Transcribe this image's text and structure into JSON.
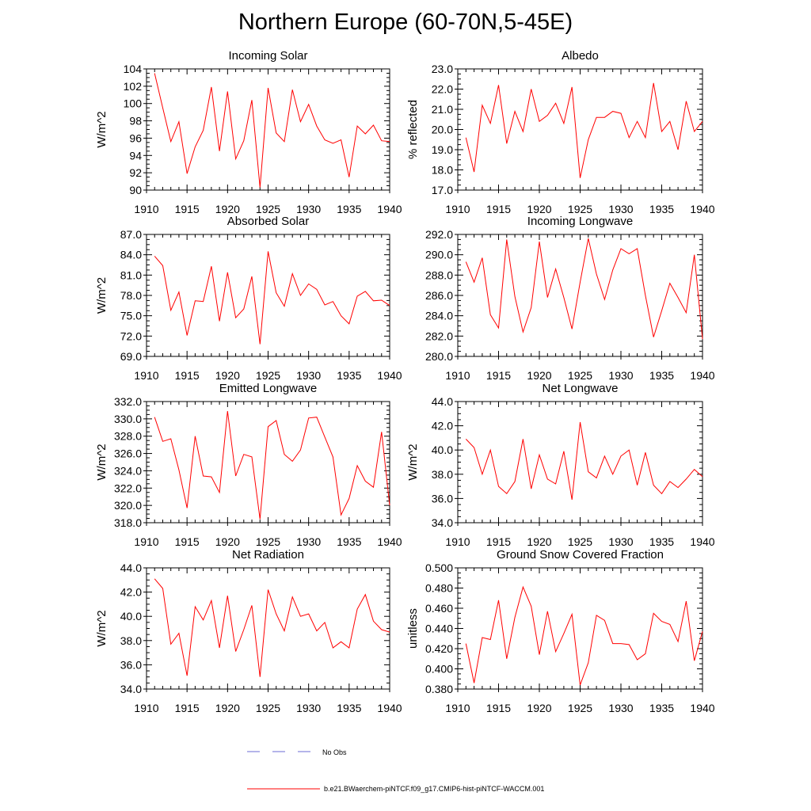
{
  "page": {
    "title": "Northern Europe (60-70N,5-45E)"
  },
  "legend": {
    "entries": [
      {
        "label": "No Obs",
        "color": "#6b6bd6",
        "style": "dashed"
      },
      {
        "label": "b.e21.BWaerchem-piNTCF.f09_g17.CMIP6-hist-piNTCF-WACCM.001",
        "color": "#ff0000",
        "style": "solid"
      }
    ]
  },
  "chart_data": [
    {
      "type": "line",
      "title": "Incoming Solar",
      "xlabel": "",
      "ylabel": "W/m^2",
      "xlim": [
        1910,
        1940
      ],
      "ylim": [
        90,
        104
      ],
      "yticks": [
        "90",
        "92",
        "94",
        "96",
        "98",
        "100",
        "102",
        "104"
      ],
      "xticks": [
        "1910",
        "1915",
        "1920",
        "1925",
        "1930",
        "1935",
        "1940"
      ],
      "grid": false,
      "series": [
        {
          "color": "#ff0000",
          "x": [
            1911,
            1912,
            1913,
            1914,
            1915,
            1916,
            1917,
            1918,
            1919,
            1920,
            1921,
            1922,
            1923,
            1924,
            1925,
            1926,
            1927,
            1928,
            1929,
            1930,
            1931,
            1932,
            1933,
            1934,
            1935,
            1936,
            1937,
            1938,
            1939,
            1940
          ],
          "y": [
            103.5,
            99.5,
            95.6,
            97.9,
            91.9,
            95.0,
            96.9,
            101.9,
            94.5,
            101.4,
            93.6,
            95.7,
            100.4,
            90.3,
            101.8,
            96.6,
            95.6,
            101.6,
            97.9,
            99.9,
            97.4,
            95.8,
            95.4,
            95.8,
            91.5,
            97.4,
            96.5,
            97.5,
            95.7,
            95.6
          ]
        }
      ]
    },
    {
      "type": "line",
      "title": "Albedo",
      "xlabel": "",
      "ylabel": "% reflected",
      "xlim": [
        1910,
        1940
      ],
      "ylim": [
        17,
        23
      ],
      "yticks": [
        "17.0",
        "18.0",
        "19.0",
        "20.0",
        "21.0",
        "22.0",
        "23.0"
      ],
      "xticks": [
        "1910",
        "1915",
        "1920",
        "1925",
        "1930",
        "1935",
        "1940"
      ],
      "grid": false,
      "series": [
        {
          "color": "#ff0000",
          "x": [
            1911,
            1912,
            1913,
            1914,
            1915,
            1916,
            1917,
            1918,
            1919,
            1920,
            1921,
            1922,
            1923,
            1924,
            1925,
            1926,
            1927,
            1928,
            1929,
            1930,
            1931,
            1932,
            1933,
            1934,
            1935,
            1936,
            1937,
            1938,
            1939,
            1940
          ],
          "y": [
            19.6,
            17.9,
            21.2,
            20.3,
            22.2,
            19.3,
            20.9,
            19.9,
            22.0,
            20.4,
            20.7,
            21.3,
            20.3,
            22.1,
            17.6,
            19.5,
            20.6,
            20.6,
            20.9,
            20.8,
            19.6,
            20.4,
            19.6,
            22.3,
            19.9,
            20.4,
            19.0,
            21.4,
            19.9,
            20.4
          ]
        }
      ]
    },
    {
      "type": "line",
      "title": "Absorbed Solar",
      "xlabel": "",
      "ylabel": "W/m^2",
      "xlim": [
        1910,
        1940
      ],
      "ylim": [
        69,
        87
      ],
      "yticks": [
        "69.0",
        "72.0",
        "75.0",
        "78.0",
        "81.0",
        "84.0",
        "87.0"
      ],
      "xticks": [
        "1910",
        "1915",
        "1920",
        "1925",
        "1930",
        "1935",
        "1940"
      ],
      "grid": false,
      "series": [
        {
          "color": "#ff0000",
          "x": [
            1911,
            1912,
            1913,
            1914,
            1915,
            1916,
            1917,
            1918,
            1919,
            1920,
            1921,
            1922,
            1923,
            1924,
            1925,
            1926,
            1927,
            1928,
            1929,
            1930,
            1931,
            1932,
            1933,
            1934,
            1935,
            1936,
            1937,
            1938,
            1939,
            1940
          ],
          "y": [
            83.8,
            82.4,
            75.8,
            78.5,
            72.1,
            77.2,
            77.1,
            82.3,
            74.2,
            81.4,
            74.7,
            76.0,
            80.8,
            70.8,
            84.5,
            78.4,
            76.4,
            81.2,
            78.0,
            79.7,
            78.9,
            76.6,
            77.1,
            75.0,
            73.8,
            77.9,
            78.6,
            77.2,
            77.3,
            76.5
          ]
        }
      ]
    },
    {
      "type": "line",
      "title": "Incoming Longwave",
      "xlabel": "",
      "ylabel": "",
      "xlim": [
        1910,
        1940
      ],
      "ylim": [
        280,
        292
      ],
      "yticks": [
        "280.0",
        "282.0",
        "284.0",
        "286.0",
        "288.0",
        "290.0",
        "292.0"
      ],
      "xticks": [
        "1910",
        "1915",
        "1920",
        "1925",
        "1930",
        "1935",
        "1940"
      ],
      "grid": false,
      "series": [
        {
          "color": "#ff0000",
          "x": [
            1911,
            1912,
            1913,
            1914,
            1915,
            1916,
            1917,
            1918,
            1919,
            1920,
            1921,
            1922,
            1923,
            1924,
            1925,
            1926,
            1927,
            1928,
            1929,
            1930,
            1931,
            1932,
            1933,
            1934,
            1935,
            1936,
            1937,
            1938,
            1939,
            1940
          ],
          "y": [
            289.3,
            287.3,
            289.7,
            284.1,
            282.8,
            291.5,
            285.9,
            282.4,
            284.8,
            291.3,
            285.8,
            288.6,
            285.8,
            282.7,
            287.3,
            291.6,
            288.1,
            285.6,
            288.5,
            290.6,
            290.1,
            290.6,
            286.0,
            281.9,
            284.5,
            287.2,
            285.8,
            284.3,
            290.0,
            281.7
          ]
        }
      ]
    },
    {
      "type": "line",
      "title": "Emitted Longwave",
      "xlabel": "",
      "ylabel": "W/m^2",
      "xlim": [
        1910,
        1940
      ],
      "ylim": [
        318,
        332
      ],
      "yticks": [
        "318.0",
        "320.0",
        "322.0",
        "324.0",
        "326.0",
        "328.0",
        "330.0",
        "332.0"
      ],
      "xticks": [
        "1910",
        "1915",
        "1920",
        "1925",
        "1930",
        "1935",
        "1940"
      ],
      "grid": false,
      "series": [
        {
          "color": "#ff0000",
          "x": [
            1911,
            1912,
            1913,
            1914,
            1915,
            1916,
            1917,
            1918,
            1919,
            1920,
            1921,
            1922,
            1923,
            1924,
            1925,
            1926,
            1927,
            1928,
            1929,
            1930,
            1931,
            1932,
            1933,
            1934,
            1935,
            1936,
            1937,
            1938,
            1939,
            1940
          ],
          "y": [
            330.2,
            327.4,
            327.7,
            324.1,
            319.7,
            328.0,
            323.4,
            323.3,
            321.5,
            330.9,
            323.4,
            325.9,
            325.6,
            318.4,
            329.1,
            329.8,
            325.9,
            325.1,
            326.4,
            330.1,
            330.2,
            327.9,
            325.6,
            318.9,
            320.8,
            324.6,
            322.8,
            322.1,
            328.5,
            320.0
          ]
        }
      ]
    },
    {
      "type": "line",
      "title": "Net Longwave",
      "xlabel": "",
      "ylabel": "W/m^2",
      "xlim": [
        1910,
        1940
      ],
      "ylim": [
        34,
        44
      ],
      "yticks": [
        "34.0",
        "36.0",
        "38.0",
        "40.0",
        "42.0",
        "44.0"
      ],
      "xticks": [
        "1910",
        "1915",
        "1920",
        "1925",
        "1930",
        "1935",
        "1940"
      ],
      "grid": false,
      "series": [
        {
          "color": "#ff0000",
          "x": [
            1911,
            1912,
            1913,
            1914,
            1915,
            1916,
            1917,
            1918,
            1919,
            1920,
            1921,
            1922,
            1923,
            1924,
            1925,
            1926,
            1927,
            1928,
            1929,
            1930,
            1931,
            1932,
            1933,
            1934,
            1935,
            1936,
            1937,
            1938,
            1939,
            1940
          ],
          "y": [
            40.9,
            40.2,
            38.0,
            40.0,
            37.0,
            36.4,
            37.4,
            40.9,
            36.8,
            39.6,
            37.6,
            37.2,
            39.9,
            35.9,
            42.3,
            38.2,
            37.7,
            39.5,
            38.0,
            39.5,
            40.0,
            37.1,
            39.8,
            37.1,
            36.4,
            37.4,
            36.9,
            37.6,
            38.4,
            37.8
          ]
        }
      ]
    },
    {
      "type": "line",
      "title": "Net Radiation",
      "xlabel": "",
      "ylabel": "W/m^2",
      "xlim": [
        1910,
        1940
      ],
      "ylim": [
        34,
        44
      ],
      "yticks": [
        "34.0",
        "36.0",
        "38.0",
        "40.0",
        "42.0",
        "44.0"
      ],
      "xticks": [
        "1910",
        "1915",
        "1920",
        "1925",
        "1930",
        "1935",
        "1940"
      ],
      "grid": false,
      "series": [
        {
          "color": "#ff0000",
          "x": [
            1911,
            1912,
            1913,
            1914,
            1915,
            1916,
            1917,
            1918,
            1919,
            1920,
            1921,
            1922,
            1923,
            1924,
            1925,
            1926,
            1927,
            1928,
            1929,
            1930,
            1931,
            1932,
            1933,
            1934,
            1935,
            1936,
            1937,
            1938,
            1939,
            1940
          ],
          "y": [
            43.1,
            42.3,
            37.7,
            38.6,
            35.1,
            40.8,
            39.7,
            41.3,
            37.4,
            41.7,
            37.1,
            38.9,
            40.9,
            35.0,
            42.2,
            40.2,
            38.8,
            41.6,
            40.0,
            40.2,
            38.8,
            39.5,
            37.4,
            37.9,
            37.4,
            40.6,
            41.8,
            39.6,
            38.9,
            38.7
          ]
        }
      ]
    },
    {
      "type": "line",
      "title": "Ground Snow Covered Fraction",
      "xlabel": "",
      "ylabel": "unitless",
      "xlim": [
        1910,
        1940
      ],
      "ylim": [
        0.38,
        0.5
      ],
      "yticks": [
        "0.380",
        "0.400",
        "0.420",
        "0.440",
        "0.460",
        "0.480",
        "0.500"
      ],
      "xticks": [
        "1910",
        "1915",
        "1920",
        "1925",
        "1930",
        "1935",
        "1940"
      ],
      "grid": false,
      "series": [
        {
          "color": "#ff0000",
          "x": [
            1911,
            1912,
            1913,
            1914,
            1915,
            1916,
            1917,
            1918,
            1919,
            1920,
            1921,
            1922,
            1923,
            1924,
            1925,
            1926,
            1927,
            1928,
            1929,
            1930,
            1931,
            1932,
            1933,
            1934,
            1935,
            1936,
            1937,
            1938,
            1939,
            1940
          ],
          "y": [
            0.425,
            0.386,
            0.431,
            0.429,
            0.468,
            0.41,
            0.451,
            0.481,
            0.462,
            0.414,
            0.457,
            0.417,
            0.435,
            0.454,
            0.384,
            0.406,
            0.453,
            0.448,
            0.425,
            0.425,
            0.424,
            0.409,
            0.415,
            0.455,
            0.447,
            0.444,
            0.427,
            0.467,
            0.408,
            0.437
          ]
        }
      ]
    }
  ]
}
